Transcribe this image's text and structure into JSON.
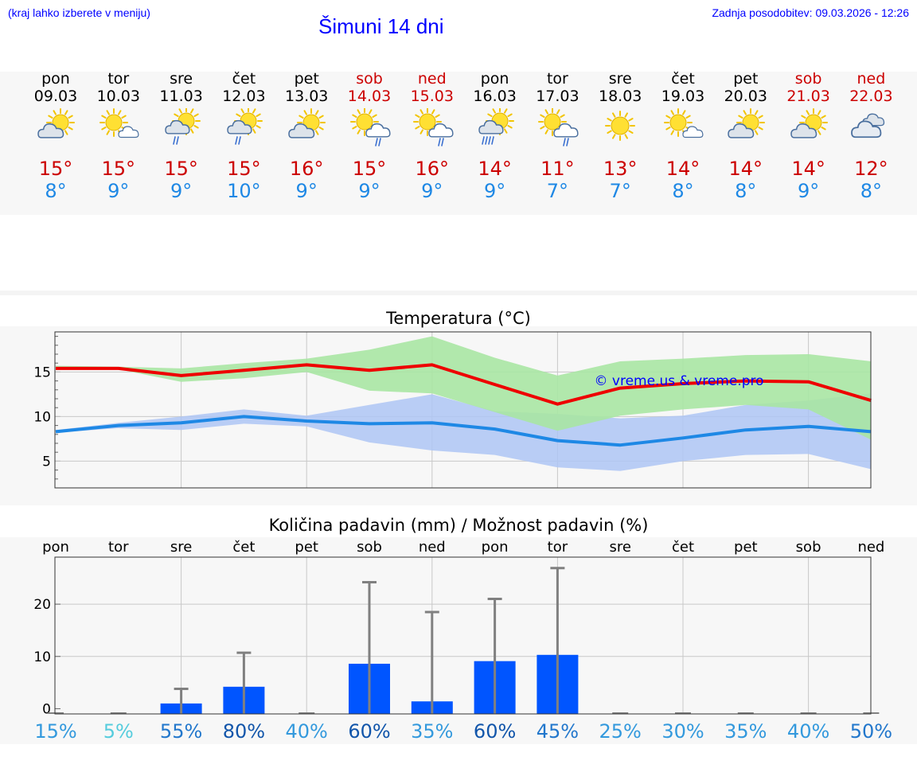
{
  "header": {
    "location_hint": "(kraj lahko izberete v meniju)",
    "title": "Šimuni 14 dni",
    "updated": "Zadnja posodobitev: 09.03.2026 - 12:26"
  },
  "days": [
    {
      "name": "pon",
      "date": "09.03",
      "weekend": false,
      "icon": "partly-cloudy-icon",
      "tmax": "15°",
      "tmin": "8°"
    },
    {
      "name": "tor",
      "date": "10.03",
      "weekend": false,
      "icon": "sun-small-cloud-icon",
      "tmax": "15°",
      "tmin": "9°"
    },
    {
      "name": "sre",
      "date": "11.03",
      "weekend": false,
      "icon": "sun-cloud-light-rain-icon",
      "tmax": "15°",
      "tmin": "9°"
    },
    {
      "name": "čet",
      "date": "12.03",
      "weekend": false,
      "icon": "sun-cloud-light-rain-icon",
      "tmax": "15°",
      "tmin": "10°"
    },
    {
      "name": "pet",
      "date": "13.03",
      "weekend": false,
      "icon": "partly-cloudy-icon",
      "tmax": "16°",
      "tmin": "9°"
    },
    {
      "name": "sob",
      "date": "14.03",
      "weekend": true,
      "icon": "sun-rain-cloud-icon",
      "tmax": "15°",
      "tmin": "9°"
    },
    {
      "name": "ned",
      "date": "15.03",
      "weekend": true,
      "icon": "sun-rain-cloud-icon",
      "tmax": "16°",
      "tmin": "9°"
    },
    {
      "name": "pon",
      "date": "16.03",
      "weekend": false,
      "icon": "sun-cloud-rain-icon",
      "tmax": "14°",
      "tmin": "9°"
    },
    {
      "name": "tor",
      "date": "17.03",
      "weekend": false,
      "icon": "sun-rain-cloud-icon",
      "tmax": "11°",
      "tmin": "7°"
    },
    {
      "name": "sre",
      "date": "18.03",
      "weekend": false,
      "icon": "sun-icon",
      "tmax": "13°",
      "tmin": "7°"
    },
    {
      "name": "čet",
      "date": "19.03",
      "weekend": false,
      "icon": "sun-small-cloud-icon",
      "tmax": "14°",
      "tmin": "8°"
    },
    {
      "name": "pet",
      "date": "20.03",
      "weekend": false,
      "icon": "partly-cloudy-icon",
      "tmax": "14°",
      "tmin": "8°"
    },
    {
      "name": "sob",
      "date": "21.03",
      "weekend": true,
      "icon": "partly-cloudy-icon",
      "tmax": "14°",
      "tmin": "9°"
    },
    {
      "name": "ned",
      "date": "22.03",
      "weekend": true,
      "icon": "cloudy-icon",
      "tmax": "12°",
      "tmin": "8°"
    }
  ],
  "colors": {
    "max_line": "#ee0000",
    "min_line": "#1e88e5",
    "max_band": "#a8e6a3",
    "min_band": "#aec6f5",
    "bar": "#0055ff",
    "errbar": "#808080",
    "weekend": "#cc0000",
    "title_blue": "#0000ff"
  },
  "chart_data": [
    {
      "type": "line",
      "title": "Temperatura (°C)",
      "x": [
        "pon",
        "tor",
        "sre",
        "čet",
        "pet",
        "sob",
        "ned",
        "pon",
        "tor",
        "sre",
        "čet",
        "pet",
        "sob",
        "ned"
      ],
      "ylim": [
        2,
        19.5
      ],
      "yticks": [
        5,
        10,
        15
      ],
      "watermark": "© vreme.us & vreme.pro",
      "series": [
        {
          "name": "max",
          "values": [
            15.4,
            15.4,
            14.6,
            15.2,
            15.8,
            15.2,
            15.8,
            13.6,
            11.4,
            13.2,
            13.7,
            14.0,
            13.9,
            11.8
          ],
          "band_low": [
            15.3,
            15.3,
            13.9,
            14.3,
            15.0,
            12.9,
            12.6,
            10.5,
            8.4,
            10.1,
            10.8,
            11.3,
            10.8,
            7.4
          ],
          "band_high": [
            15.7,
            15.6,
            15.4,
            16.0,
            16.5,
            17.5,
            19.0,
            16.6,
            14.6,
            16.2,
            16.5,
            16.9,
            17.0,
            16.2
          ]
        },
        {
          "name": "min",
          "values": [
            8.3,
            9.0,
            9.3,
            10.0,
            9.5,
            9.2,
            9.3,
            8.6,
            7.3,
            6.8,
            7.6,
            8.5,
            8.9,
            8.3
          ],
          "band_low": [
            8.2,
            8.7,
            8.5,
            9.2,
            8.9,
            7.1,
            6.2,
            5.7,
            4.3,
            3.9,
            5.0,
            5.7,
            5.8,
            4.1
          ],
          "band_high": [
            8.5,
            9.3,
            10.0,
            10.8,
            10.1,
            11.3,
            12.5,
            10.6,
            10.3,
            9.8,
            10.1,
            11.3,
            11.8,
            12.6
          ]
        }
      ]
    },
    {
      "type": "bar",
      "title": "Količina padavin (mm) / Možnost padavin (%)",
      "categories": [
        "pon",
        "tor",
        "sre",
        "čet",
        "pet",
        "sob",
        "ned",
        "pon",
        "tor",
        "sre",
        "čet",
        "pet",
        "sob",
        "ned"
      ],
      "values": [
        0,
        0,
        1.0,
        4.2,
        0,
        8.6,
        1.4,
        9.1,
        10.3,
        0,
        0,
        0,
        0,
        0
      ],
      "error_high": [
        0,
        0,
        3.8,
        10.7,
        0,
        24.2,
        18.5,
        21.0,
        26.9,
        0,
        0,
        0,
        0,
        0
      ],
      "probability": [
        "15%",
        "5%",
        "55%",
        "80%",
        "40%",
        "60%",
        "35%",
        "60%",
        "45%",
        "25%",
        "30%",
        "35%",
        "40%",
        "50%"
      ],
      "ylim": [
        -1,
        29
      ],
      "yticks": [
        0,
        10,
        20
      ]
    }
  ]
}
